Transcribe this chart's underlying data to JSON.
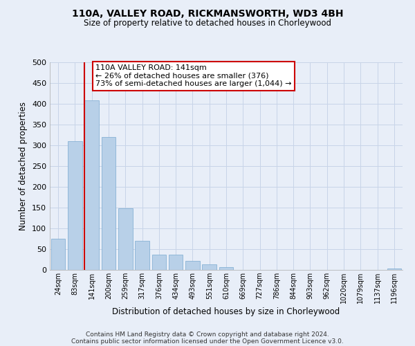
{
  "title": "110A, VALLEY ROAD, RICKMANSWORTH, WD3 4BH",
  "subtitle": "Size of property relative to detached houses in Chorleywood",
  "xlabel": "Distribution of detached houses by size in Chorleywood",
  "ylabel": "Number of detached properties",
  "bar_labels": [
    "24sqm",
    "83sqm",
    "141sqm",
    "200sqm",
    "259sqm",
    "317sqm",
    "376sqm",
    "434sqm",
    "493sqm",
    "551sqm",
    "610sqm",
    "669sqm",
    "727sqm",
    "786sqm",
    "844sqm",
    "903sqm",
    "962sqm",
    "1020sqm",
    "1079sqm",
    "1137sqm",
    "1196sqm"
  ],
  "bar_values": [
    75,
    310,
    408,
    320,
    148,
    70,
    37,
    37,
    22,
    14,
    6,
    0,
    0,
    0,
    0,
    0,
    0,
    0,
    0,
    0,
    3
  ],
  "bar_color": "#b8d0e8",
  "bar_edge_color": "#7aaad0",
  "vline_color": "#cc0000",
  "vline_x_index": 2,
  "ylim": [
    0,
    500
  ],
  "yticks": [
    0,
    50,
    100,
    150,
    200,
    250,
    300,
    350,
    400,
    450,
    500
  ],
  "annotation_title": "110A VALLEY ROAD: 141sqm",
  "annotation_line1": "← 26% of detached houses are smaller (376)",
  "annotation_line2": "73% of semi-detached houses are larger (1,044) →",
  "annotation_box_color": "#ffffff",
  "annotation_box_edge": "#cc0000",
  "footer_line1": "Contains HM Land Registry data © Crown copyright and database right 2024.",
  "footer_line2": "Contains public sector information licensed under the Open Government Licence v3.0.",
  "bg_color": "#e8eef8",
  "plot_bg_color": "#e8eef8",
  "grid_color": "#c8d4e8"
}
